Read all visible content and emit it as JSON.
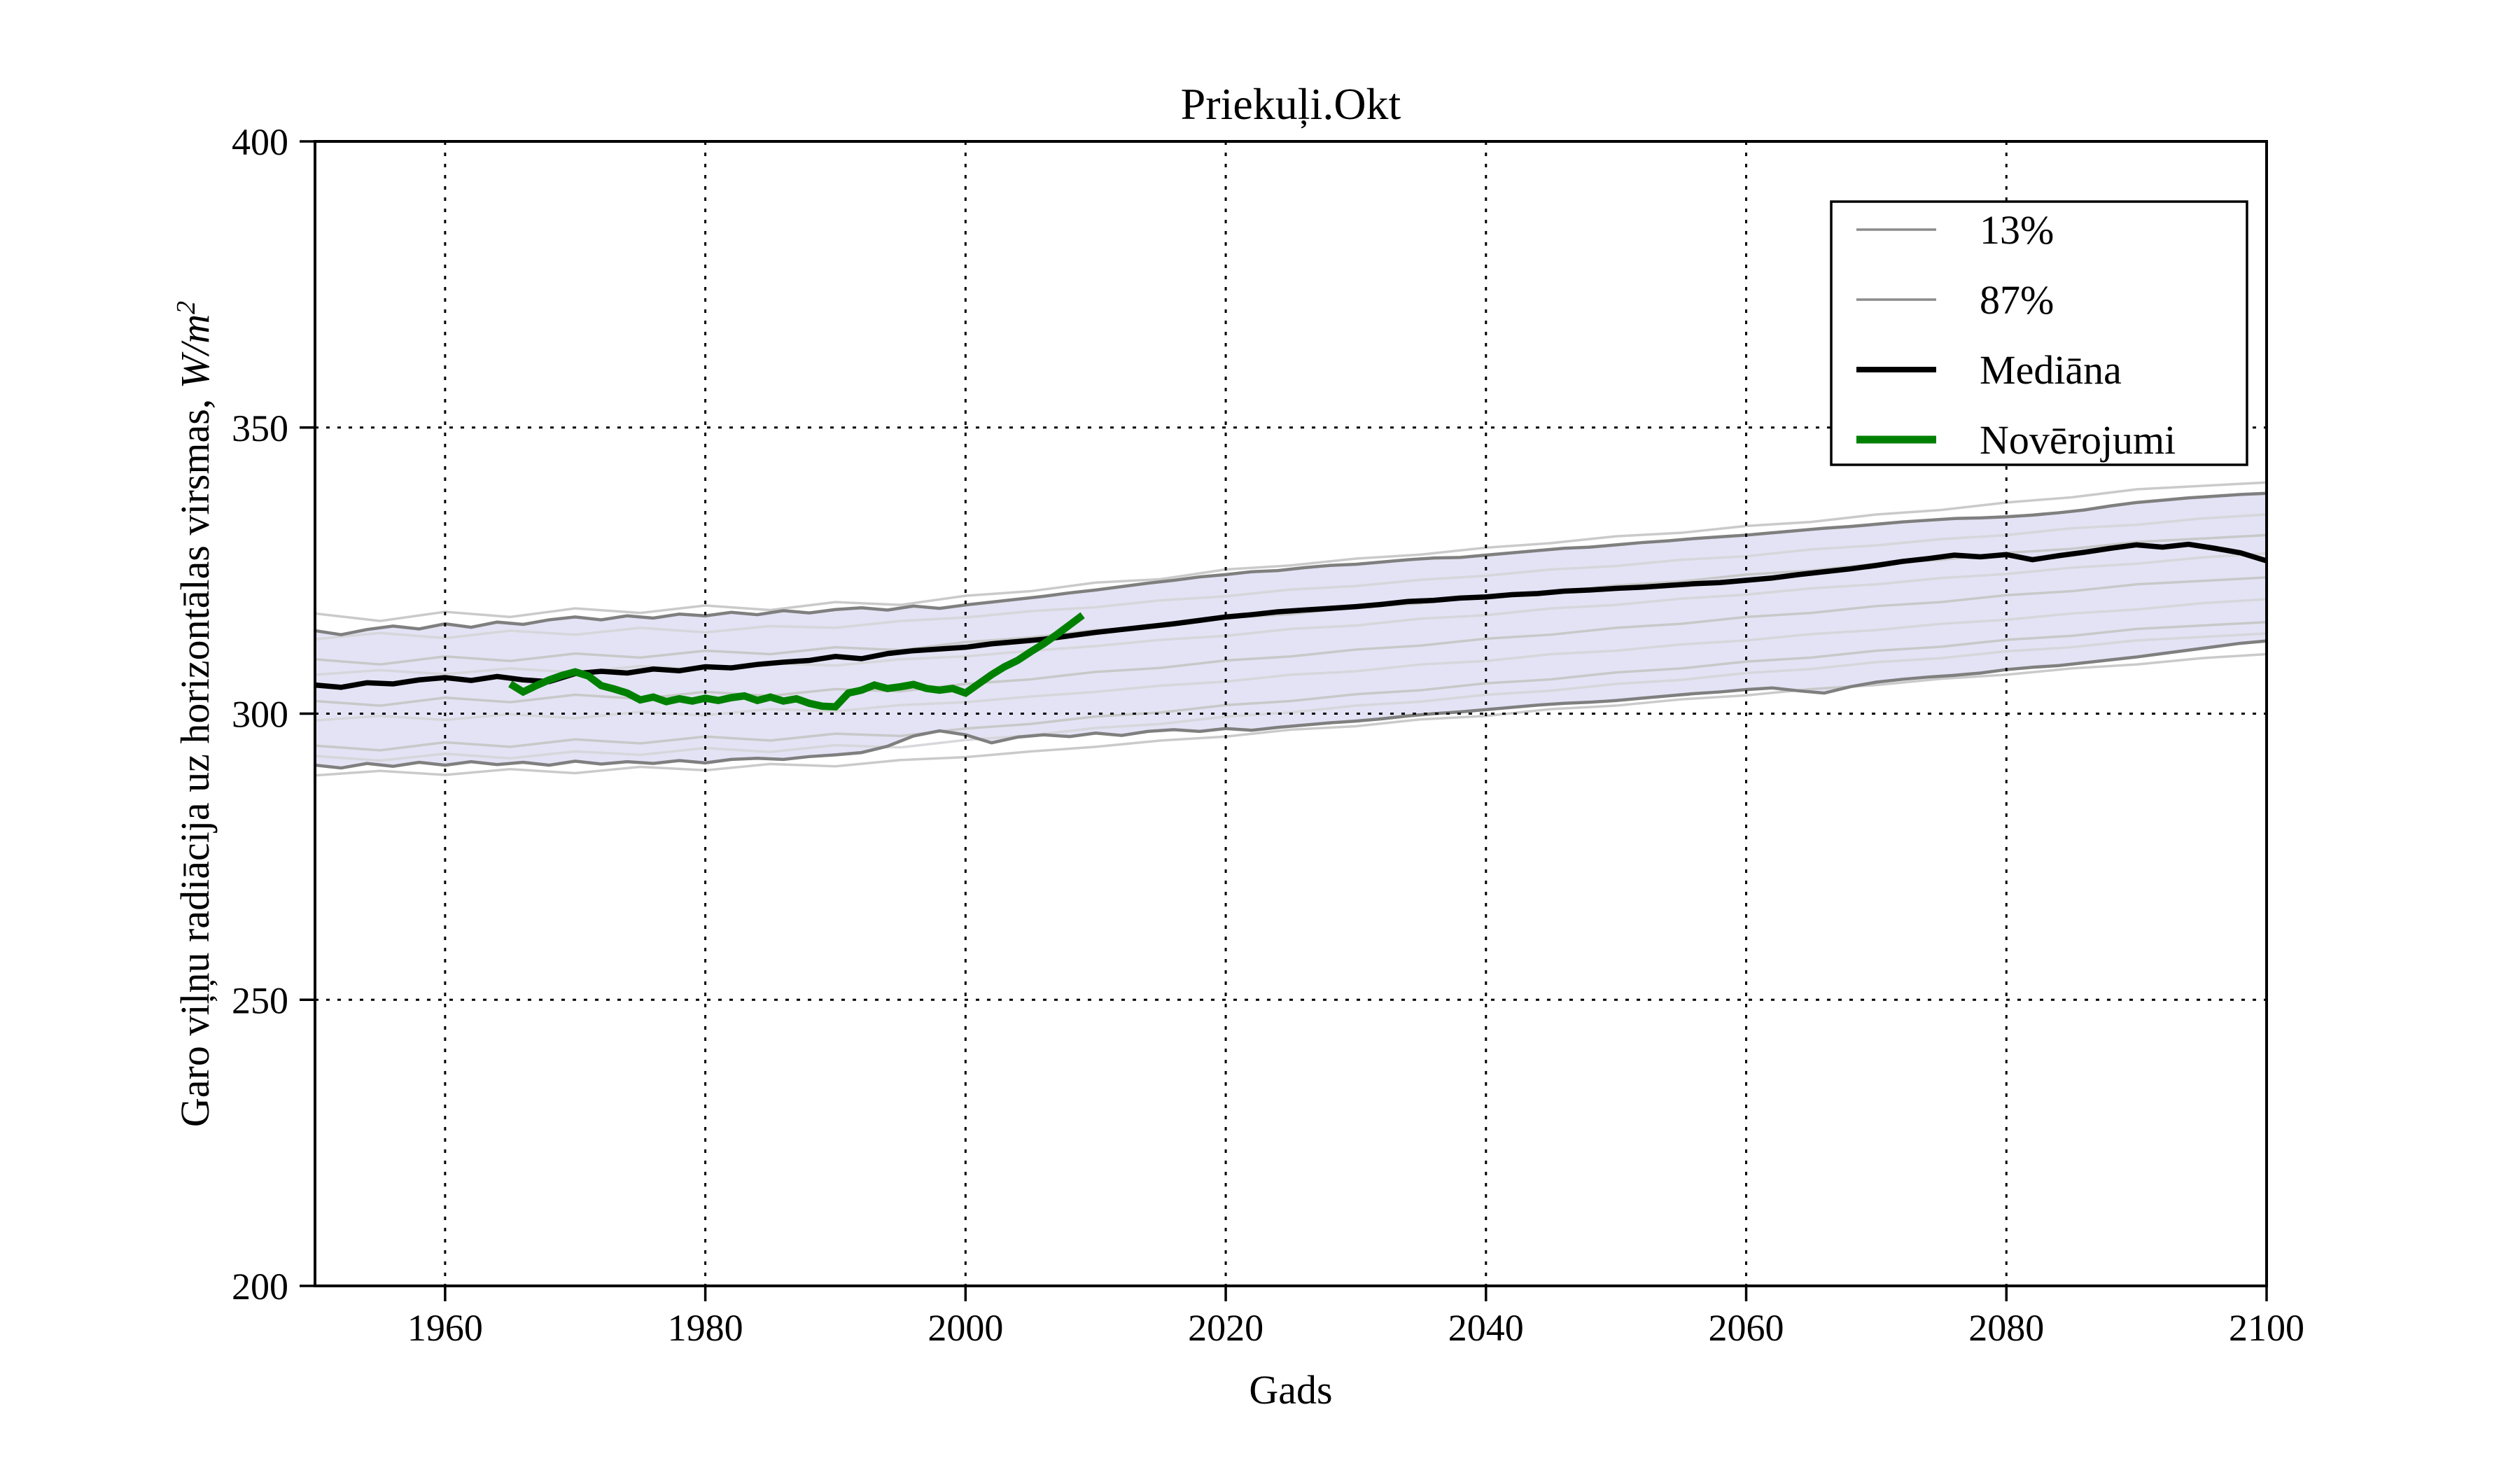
{
  "chart_data": {
    "type": "line",
    "title": "Priekuļi.Okt",
    "xlabel": "Gads",
    "ylabel": "Garo viļņu radiācija uz horizontālas virsmas, W/m²",
    "ylabel_parts": {
      "prefix": "Garo viļņu radiācija uz horizontālas virsmas, ",
      "math": "W/m",
      "superscript": "2"
    },
    "xlim": [
      1950,
      2100
    ],
    "ylim": [
      200,
      400
    ],
    "xticks": [
      1960,
      1980,
      2000,
      2020,
      2040,
      2060,
      2080,
      2100
    ],
    "yticks": [
      200,
      250,
      300,
      350,
      400
    ],
    "grid": {
      "style": "dotted",
      "color": "#000000"
    },
    "colors": {
      "band_fill": "#e3e3f5",
      "percentile_line": "#7f7f7f",
      "ensemble_line_a": "#c4c4c4",
      "ensemble_line_b": "#d4d4d8",
      "median_line": "#000000",
      "observations_line": "#008000"
    },
    "legend": {
      "position": "upper right",
      "entries": [
        {
          "label": "13%",
          "color": "#8c8c8c",
          "line_width": 3.5
        },
        {
          "label": "87%",
          "color": "#8c8c8c",
          "line_width": 3.5
        },
        {
          "label": "Mediāna",
          "color": "#000000",
          "line_width": 8
        },
        {
          "label": "Novērojumi",
          "color": "#008000",
          "line_width": 11
        }
      ]
    },
    "band": {
      "between": [
        "13%",
        "87%"
      ],
      "fill_color": "#e3e3f5"
    },
    "x_years": [
      1950,
      1952,
      1954,
      1956,
      1958,
      1960,
      1962,
      1964,
      1966,
      1968,
      1970,
      1972,
      1974,
      1976,
      1978,
      1980,
      1982,
      1984,
      1986,
      1988,
      1990,
      1992,
      1994,
      1996,
      1998,
      2000,
      2002,
      2004,
      2006,
      2008,
      2010,
      2012,
      2014,
      2016,
      2018,
      2020,
      2022,
      2024,
      2026,
      2028,
      2030,
      2032,
      2034,
      2036,
      2038,
      2040,
      2042,
      2044,
      2046,
      2048,
      2050,
      2052,
      2054,
      2056,
      2058,
      2060,
      2062,
      2064,
      2066,
      2068,
      2070,
      2072,
      2074,
      2076,
      2078,
      2080,
      2082,
      2084,
      2086,
      2088,
      2090,
      2092,
      2094,
      2096,
      2098,
      2100
    ],
    "series": {
      "p13": {
        "label": "13%",
        "values": [
          291.0,
          290.5,
          291.3,
          290.8,
          291.5,
          291.0,
          291.6,
          291.1,
          291.5,
          291.0,
          291.7,
          291.2,
          291.6,
          291.3,
          291.8,
          291.4,
          292.0,
          292.2,
          292.0,
          292.5,
          292.8,
          293.2,
          294.3,
          296.1,
          297.0,
          296.3,
          294.9,
          295.9,
          296.3,
          296.0,
          296.6,
          296.2,
          296.9,
          297.2,
          296.9,
          297.4,
          297.1,
          297.6,
          298.0,
          298.4,
          298.7,
          299.1,
          299.6,
          300.0,
          300.3,
          300.7,
          301.1,
          301.5,
          301.8,
          302.0,
          302.3,
          302.7,
          303.1,
          303.5,
          303.8,
          304.2,
          304.5,
          304.0,
          303.6,
          304.7,
          305.5,
          306.0,
          306.4,
          306.7,
          307.1,
          307.7,
          308.1,
          308.4,
          308.9,
          309.4,
          309.9,
          310.5,
          311.1,
          311.7,
          312.3,
          312.7
        ]
      },
      "p87": {
        "label": "87%",
        "values": [
          314.5,
          313.8,
          314.7,
          315.3,
          314.8,
          315.7,
          315.1,
          316.0,
          315.6,
          316.4,
          316.9,
          316.4,
          317.1,
          316.7,
          317.4,
          317.1,
          317.7,
          317.3,
          318.0,
          317.6,
          318.2,
          318.5,
          318.1,
          318.8,
          318.4,
          319.0,
          319.5,
          320.0,
          320.5,
          321.1,
          321.6,
          322.2,
          322.8,
          323.3,
          323.9,
          324.3,
          324.8,
          325.0,
          325.5,
          325.9,
          326.1,
          326.5,
          326.9,
          327.2,
          327.3,
          327.7,
          328.1,
          328.5,
          328.9,
          329.1,
          329.5,
          329.9,
          330.2,
          330.6,
          330.9,
          331.2,
          331.6,
          332.0,
          332.4,
          332.7,
          333.1,
          333.5,
          333.8,
          334.1,
          334.2,
          334.4,
          334.7,
          335.1,
          335.6,
          336.3,
          336.9,
          337.3,
          337.7,
          338.0,
          338.3,
          338.5
        ]
      },
      "median": {
        "label": "Mediāna",
        "values": [
          305.0,
          304.6,
          305.4,
          305.2,
          305.9,
          306.3,
          305.8,
          306.5,
          305.9,
          305.6,
          307.0,
          307.4,
          307.1,
          307.8,
          307.5,
          308.2,
          308.0,
          308.6,
          309.0,
          309.3,
          310.0,
          309.6,
          310.5,
          311.0,
          311.3,
          311.6,
          312.2,
          312.6,
          313.0,
          313.6,
          314.2,
          314.7,
          315.2,
          315.7,
          316.3,
          316.9,
          317.3,
          317.8,
          318.1,
          318.4,
          318.7,
          319.1,
          319.6,
          319.8,
          320.2,
          320.4,
          320.8,
          321.0,
          321.4,
          321.6,
          321.9,
          322.1,
          322.4,
          322.7,
          322.9,
          323.3,
          323.7,
          324.3,
          324.8,
          325.3,
          325.9,
          326.6,
          327.1,
          327.7,
          327.4,
          327.8,
          326.9,
          327.6,
          328.2,
          328.9,
          329.5,
          329.1,
          329.6,
          328.9,
          328.1,
          326.7
        ]
      }
    },
    "observations": {
      "label": "Novērojumi",
      "years": [
        1965,
        1966,
        1967,
        1968,
        1969,
        1970,
        1971,
        1972,
        1973,
        1974,
        1975,
        1976,
        1977,
        1978,
        1979,
        1980,
        1981,
        1982,
        1983,
        1984,
        1985,
        1986,
        1987,
        1988,
        1989,
        1990,
        1991,
        1992,
        1993,
        1994,
        1995,
        1996,
        1997,
        1998,
        1999,
        2000,
        2001,
        2002,
        2003,
        2004,
        2005,
        2006,
        2007,
        2008,
        2009
      ],
      "values": [
        305.2,
        303.8,
        304.9,
        305.9,
        306.7,
        307.3,
        306.6,
        304.9,
        304.3,
        303.6,
        302.4,
        302.9,
        302.1,
        302.6,
        302.2,
        302.7,
        302.3,
        302.8,
        303.1,
        302.3,
        302.9,
        302.2,
        302.6,
        301.8,
        301.3,
        301.2,
        303.6,
        304.1,
        305.0,
        304.4,
        304.7,
        305.1,
        304.4,
        304.1,
        304.4,
        303.6,
        305.2,
        306.8,
        308.2,
        309.3,
        310.8,
        312.2,
        313.8,
        315.5,
        317.2
      ]
    },
    "ensemble": {
      "years": [
        1950,
        1955,
        1960,
        1965,
        1970,
        1975,
        1980,
        1985,
        1990,
        1995,
        2000,
        2005,
        2010,
        2015,
        2020,
        2025,
        2030,
        2035,
        2040,
        2045,
        2050,
        2055,
        2060,
        2065,
        2070,
        2075,
        2080,
        2085,
        2090,
        2095,
        2100
      ],
      "members": [
        [
          317.5,
          316.2,
          317.8,
          316.9,
          318.4,
          317.6,
          318.9,
          318.1,
          319.5,
          319.0,
          320.6,
          321.4,
          322.9,
          323.5,
          325.2,
          325.9,
          327.1,
          327.8,
          329.0,
          329.8,
          331.0,
          331.6,
          332.8,
          333.5,
          334.8,
          335.6,
          336.9,
          337.8,
          339.2,
          339.8,
          340.4
        ],
        [
          313.0,
          314.1,
          313.2,
          314.5,
          313.8,
          315.0,
          314.2,
          315.3,
          315.0,
          316.2,
          316.8,
          317.9,
          318.6,
          319.8,
          320.5,
          321.7,
          322.3,
          323.4,
          324.1,
          325.2,
          325.8,
          326.9,
          327.5,
          328.7,
          329.4,
          330.5,
          331.2,
          332.4,
          333.0,
          334.1,
          334.8
        ],
        [
          309.5,
          308.6,
          310.0,
          309.2,
          310.5,
          309.8,
          311.0,
          310.4,
          311.6,
          311.1,
          312.5,
          313.3,
          314.6,
          315.3,
          316.7,
          317.4,
          318.6,
          319.3,
          320.5,
          321.2,
          322.4,
          323.1,
          324.3,
          325.0,
          326.2,
          326.9,
          328.1,
          328.8,
          330.0,
          330.6,
          331.2
        ],
        [
          306.8,
          307.6,
          306.9,
          307.9,
          307.2,
          308.3,
          307.7,
          308.8,
          308.4,
          309.5,
          310.0,
          311.0,
          311.8,
          312.9,
          313.6,
          314.8,
          315.4,
          316.6,
          317.2,
          318.4,
          319.0,
          320.1,
          320.8,
          321.9,
          322.6,
          323.7,
          324.4,
          325.5,
          326.2,
          327.3,
          328.0
        ],
        [
          302.2,
          301.4,
          302.8,
          302.0,
          303.3,
          302.6,
          303.8,
          303.1,
          304.3,
          303.9,
          305.2,
          306.0,
          307.3,
          308.0,
          309.3,
          310.0,
          311.2,
          311.9,
          313.1,
          313.8,
          315.0,
          315.7,
          316.9,
          317.6,
          318.8,
          319.5,
          320.7,
          321.4,
          322.6,
          323.2,
          323.8
        ],
        [
          298.8,
          299.6,
          298.9,
          299.9,
          299.2,
          300.3,
          299.7,
          300.8,
          300.4,
          301.5,
          302.0,
          303.0,
          303.8,
          304.9,
          305.6,
          306.8,
          307.4,
          308.6,
          309.2,
          310.4,
          311.0,
          312.1,
          312.8,
          313.9,
          314.6,
          315.7,
          316.4,
          317.5,
          318.2,
          319.3,
          320.0
        ],
        [
          294.4,
          293.6,
          295.0,
          294.2,
          295.5,
          294.8,
          296.0,
          295.3,
          296.5,
          296.1,
          297.4,
          298.2,
          299.5,
          300.2,
          301.5,
          302.2,
          303.4,
          304.1,
          305.3,
          306.0,
          307.2,
          307.9,
          309.1,
          309.8,
          311.0,
          311.7,
          312.9,
          313.6,
          314.8,
          315.4,
          316.0
        ],
        [
          292.6,
          291.8,
          293.0,
          292.2,
          293.4,
          292.8,
          294.0,
          293.3,
          294.5,
          294.1,
          295.4,
          296.2,
          297.5,
          298.2,
          299.5,
          300.2,
          301.4,
          302.1,
          303.3,
          304.0,
          305.2,
          305.9,
          307.1,
          307.8,
          309.0,
          309.7,
          310.9,
          311.6,
          312.8,
          313.4,
          314.0
        ],
        [
          289.2,
          290.0,
          289.3,
          290.3,
          289.6,
          290.7,
          290.1,
          291.2,
          290.8,
          291.9,
          292.4,
          293.4,
          294.2,
          295.3,
          296.0,
          297.2,
          297.8,
          299.0,
          299.6,
          300.8,
          301.4,
          302.5,
          303.2,
          304.3,
          305.0,
          306.1,
          306.8,
          307.9,
          308.6,
          309.7,
          310.4
        ]
      ]
    }
  }
}
